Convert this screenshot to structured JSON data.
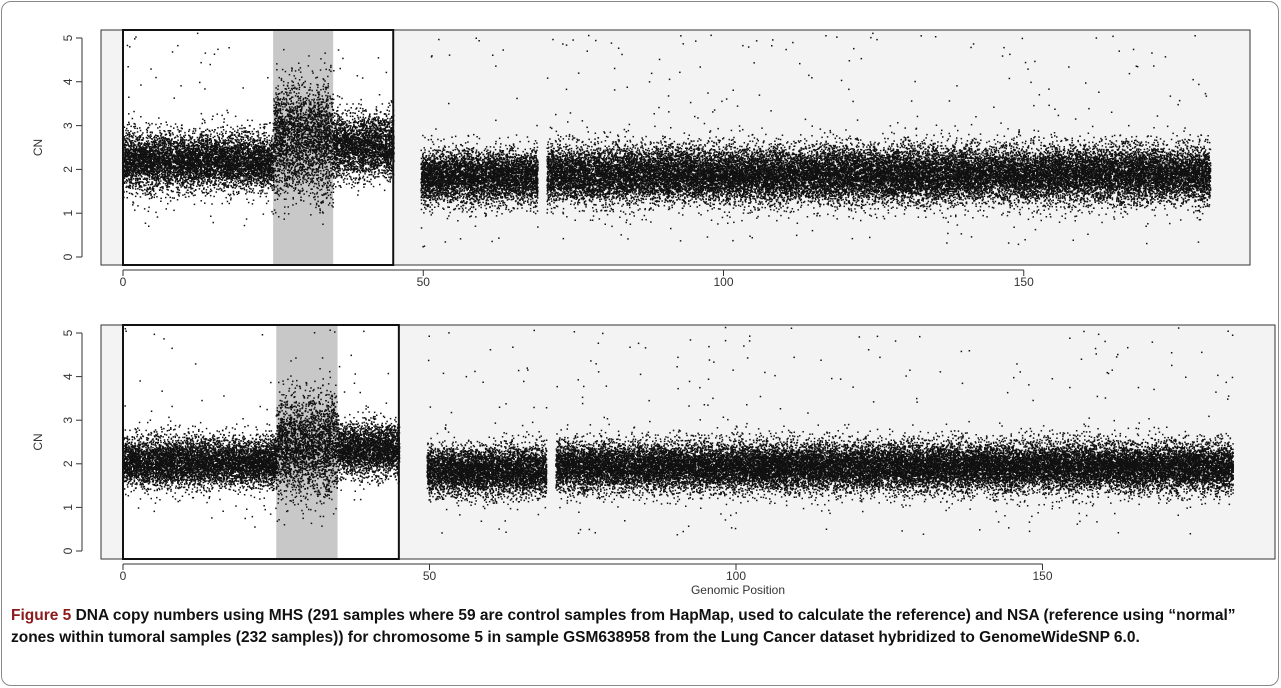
{
  "caption": {
    "label": "Figure 5",
    "text": " DNA copy numbers using MHS (291 samples where 59 are control samples from HapMap, used to calculate the reference) and NSA (reference using “normal” zones within tumoral samples (232 samples)) for chromosome 5 in sample GSM638958 from the Lung Cancer dataset hybridized to GenomeWideSNP 6.0."
  },
  "colors": {
    "points": "#111111",
    "plot_background": "#f3f3f3",
    "highlight_box_fill": "#ffffff",
    "centromere_band": "#c8c8c8",
    "border": "#8a8a8a"
  },
  "chart_data": [
    {
      "type": "scatter",
      "panel": "top",
      "xlabel": "",
      "ylabel": "CN",
      "xlim": [
        0,
        188
      ],
      "ylim": [
        -0.2,
        5.2
      ],
      "xticks": [
        0,
        50,
        100,
        150
      ],
      "yticks": [
        0,
        1,
        2,
        3,
        4,
        5
      ],
      "highlight_box": [
        0,
        45
      ],
      "centromere": [
        25,
        35
      ],
      "data_span": [
        0,
        181
      ],
      "segments": [
        {
          "x": [
            0,
            25
          ],
          "mean": 2.2,
          "sd": 0.32
        },
        {
          "x": [
            25,
            35
          ],
          "mean": 2.7,
          "sd": 0.62
        },
        {
          "x": [
            35,
            45
          ],
          "mean": 2.55,
          "sd": 0.36
        },
        {
          "x": [
            49.5,
            69
          ],
          "mean": 1.85,
          "sd": 0.3
        },
        {
          "x": [
            70.5,
            181
          ],
          "mean": 1.9,
          "sd": 0.32
        }
      ]
    },
    {
      "type": "scatter",
      "panel": "bottom",
      "xlabel": "Genomic Position",
      "ylabel": "CN",
      "xlim": [
        0,
        188
      ],
      "ylim": [
        -0.2,
        5.2
      ],
      "xticks": [
        0,
        50,
        100,
        150
      ],
      "yticks": [
        0,
        1,
        2,
        3,
        4,
        5
      ],
      "highlight_box": [
        0,
        45
      ],
      "centromere": [
        25,
        35
      ],
      "data_span": [
        0,
        181
      ],
      "segments": [
        {
          "x": [
            0,
            25
          ],
          "mean": 2.05,
          "sd": 0.28
        },
        {
          "x": [
            25,
            35
          ],
          "mean": 2.45,
          "sd": 0.55
        },
        {
          "x": [
            35,
            45
          ],
          "mean": 2.35,
          "sd": 0.3
        },
        {
          "x": [
            49.5,
            69
          ],
          "mean": 1.85,
          "sd": 0.28
        },
        {
          "x": [
            70.5,
            181
          ],
          "mean": 1.95,
          "sd": 0.28
        }
      ]
    }
  ]
}
